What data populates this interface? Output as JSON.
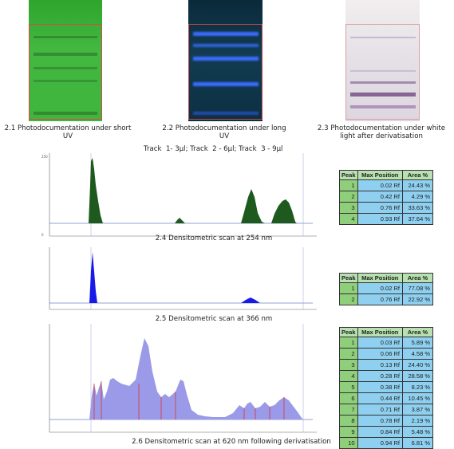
{
  "plates": [
    {
      "caption": "2.1 Photodocumentation under short UV"
    },
    {
      "caption": "2.2 Photodocumentation under long UV"
    },
    {
      "caption": "2.3 Photodocumentation under white light after derivatisation"
    }
  ],
  "track_label": "Track  1- 3µl; Track  2 - 6µl; Track  3 - 9µl",
  "scans": [
    {
      "caption": "2.4 Densitometric scan at 254 nm",
      "headers": [
        "Peak",
        "Max Position",
        "Area %"
      ],
      "rows": [
        {
          "peak": "1",
          "pos": "0.02 Rf",
          "area": "24.43 %"
        },
        {
          "peak": "2",
          "pos": "0.42 Rf",
          "area": "4.29 %"
        },
        {
          "peak": "3",
          "pos": "0.76 Rf",
          "area": "33.63 %"
        },
        {
          "peak": "4",
          "pos": "0.93 Rf",
          "area": "37.64 %"
        }
      ]
    },
    {
      "caption": "2.5 Densitometric scan at 366 nm",
      "headers": [
        "Peak",
        "Max Position",
        "Area %"
      ],
      "rows": [
        {
          "peak": "1",
          "pos": "0.02 Rf",
          "area": "77.08 %"
        },
        {
          "peak": "2",
          "pos": "0.76 Rf",
          "area": "22.92 %"
        }
      ]
    },
    {
      "caption": "2.6 Densitometric scan at 620 nm following derivatisation",
      "headers": [
        "Peak",
        "Max Position",
        "Area %"
      ],
      "rows": [
        {
          "peak": "1",
          "pos": "0.03 Rf",
          "area": "5.89 %"
        },
        {
          "peak": "2",
          "pos": "0.06 Rf",
          "area": "4.58 %"
        },
        {
          "peak": "3",
          "pos": "0.13 Rf",
          "area": "24.40 %"
        },
        {
          "peak": "4",
          "pos": "0.28 Rf",
          "area": "28.58 %"
        },
        {
          "peak": "5",
          "pos": "0.38 Rf",
          "area": "8.23 %"
        },
        {
          "peak": "6",
          "pos": "0.44 Rf",
          "area": "10.45 %"
        },
        {
          "peak": "7",
          "pos": "0.71 Rf",
          "area": "3.87 %"
        },
        {
          "peak": "8",
          "pos": "0.78 Rf",
          "area": "2.19 %"
        },
        {
          "peak": "9",
          "pos": "0.84 Rf",
          "area": "5.48 %"
        },
        {
          "peak": "10",
          "pos": "0.94 Rf",
          "area": "6.81 %"
        }
      ]
    }
  ],
  "colors": {
    "uv254": "#1e5a1e",
    "uv366": "#1a1ae8",
    "vis620": "#9a9ae8",
    "table_header": "#b8e0b0",
    "table_peak": "#8fce7a",
    "table_value": "#8fd0f0"
  }
}
